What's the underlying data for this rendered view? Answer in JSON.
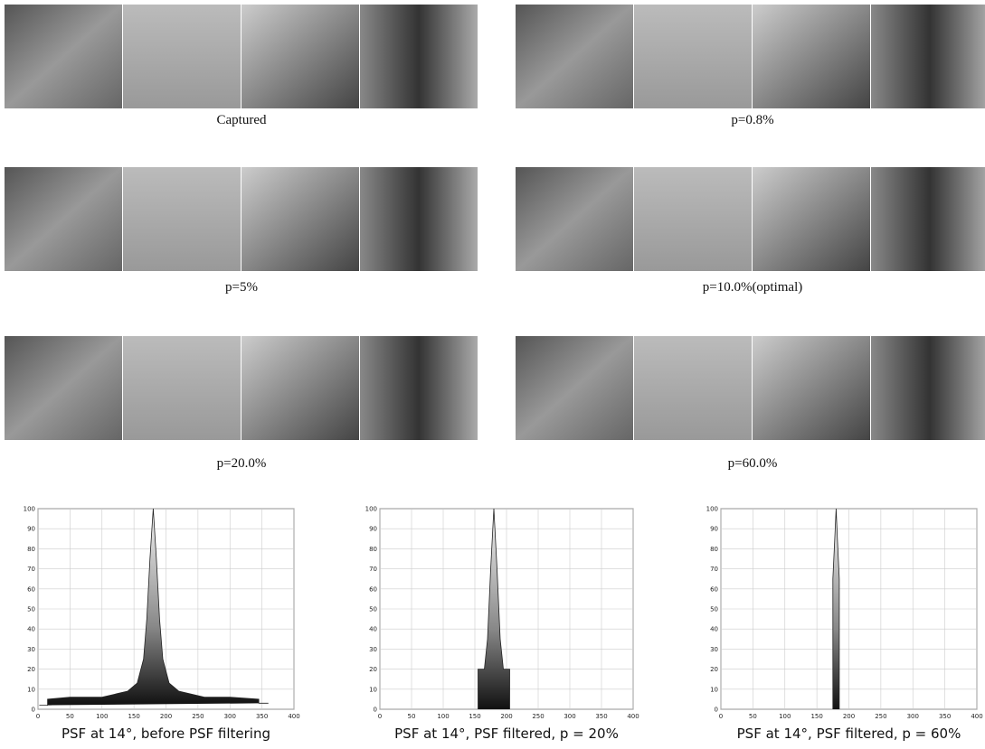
{
  "panels": [
    {
      "caption": "Captured"
    },
    {
      "caption": "p=0.8%"
    },
    {
      "caption": "p=5%"
    },
    {
      "caption": "p=10.0%(optimal)"
    },
    {
      "caption": "p=20.0%"
    },
    {
      "caption": "p=60.0%"
    }
  ],
  "chart_data": [
    {
      "type": "area",
      "title": "PSF at 14°, before PSF filtering",
      "x": [
        2,
        15,
        15,
        50,
        100,
        140,
        155,
        165,
        170,
        175,
        180,
        185,
        190,
        195,
        205,
        220,
        260,
        300,
        345,
        345,
        360
      ],
      "values": [
        2,
        2,
        5,
        6,
        6,
        9,
        13,
        25,
        45,
        75,
        100,
        75,
        45,
        25,
        13,
        9,
        6,
        6,
        5,
        3,
        3
      ],
      "xlim": [
        0,
        400
      ],
      "xticks": [
        0,
        50,
        100,
        150,
        200,
        250,
        300,
        350,
        400
      ],
      "ylim": [
        0,
        100
      ],
      "yticks": [
        0,
        10,
        20,
        30,
        40,
        50,
        60,
        70,
        80,
        90,
        100
      ],
      "grid": true
    },
    {
      "type": "area",
      "title": "PSF at 14°, PSF filtered, p = 20%",
      "x": [
        155,
        155,
        165,
        170,
        175,
        180,
        185,
        190,
        195,
        205,
        205
      ],
      "values": [
        0,
        20,
        20,
        35,
        70,
        100,
        70,
        35,
        20,
        20,
        0
      ],
      "xlim": [
        0,
        400
      ],
      "xticks": [
        0,
        50,
        100,
        150,
        200,
        250,
        300,
        350,
        400
      ],
      "ylim": [
        0,
        100
      ],
      "yticks": [
        0,
        10,
        20,
        30,
        40,
        50,
        60,
        70,
        80,
        90,
        100
      ],
      "grid": true
    },
    {
      "type": "area",
      "title": "PSF at 14°, PSF filtered, p = 60%",
      "x": [
        175,
        175,
        178,
        180,
        182,
        185,
        185
      ],
      "values": [
        0,
        65,
        85,
        100,
        85,
        65,
        0
      ],
      "xlim": [
        0,
        400
      ],
      "xticks": [
        0,
        50,
        100,
        150,
        200,
        250,
        300,
        350,
        400
      ],
      "ylim": [
        0,
        100
      ],
      "yticks": [
        0,
        10,
        20,
        30,
        40,
        50,
        60,
        70,
        80,
        90,
        100
      ],
      "grid": true
    }
  ]
}
